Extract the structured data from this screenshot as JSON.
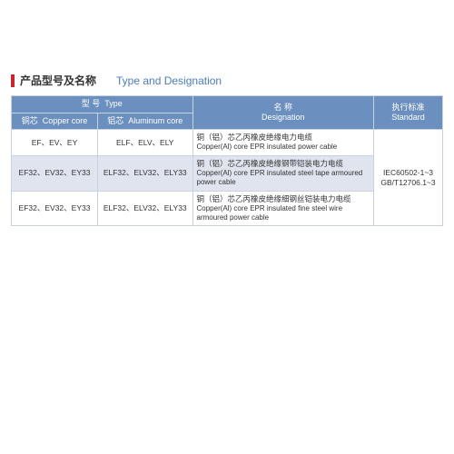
{
  "title": {
    "cn": "产品型号及名称",
    "en": "Type and Designation"
  },
  "headers": {
    "type_cn": "型 号",
    "type_en": "Type",
    "copper_cn": "铜芯",
    "copper_en": "Copper core",
    "aluminum_cn": "铝芯",
    "aluminum_en": "Aluminum core",
    "designation_cn": "名 称",
    "designation_en": "Designation",
    "standard_cn": "执行标准",
    "standard_en": "Standard"
  },
  "rows": [
    {
      "copper": "EF、EV、EY",
      "aluminum": "ELF、ELV、ELY",
      "desig_cn": "铜（铝）芯乙丙橡皮绝缘电力电缆",
      "desig_en": "Copper(Al) core EPR insulated power cable",
      "alt": false
    },
    {
      "copper": "EF32、EV32、EY33",
      "aluminum": "ELF32、ELV32、ELY33",
      "desig_cn": "铜（铝）芯乙丙橡皮绝缘钢带铠装电力电缆",
      "desig_en": "Copper(Al) core EPR insulated steel tape armoured power cable",
      "alt": true
    },
    {
      "copper": "EF32、EV32、EY33",
      "aluminum": "ELF32、ELV32、ELY33",
      "desig_cn": "铜（铝）芯乙丙橡皮绝缘细钢丝铠装电力电缆",
      "desig_en": "Copper(Al) core EPR insulated fine steel wire armoured power cable",
      "alt": false
    }
  ],
  "standard": {
    "line1": "IEC60502-1~3",
    "line2": "GB/T12706.1~3"
  },
  "colors": {
    "header_bg": "#6b8fbf",
    "alt_bg": "#dfe4ee",
    "border": "#c8d2e0",
    "accent": "#c9252c",
    "en_title": "#4a7cc0"
  }
}
